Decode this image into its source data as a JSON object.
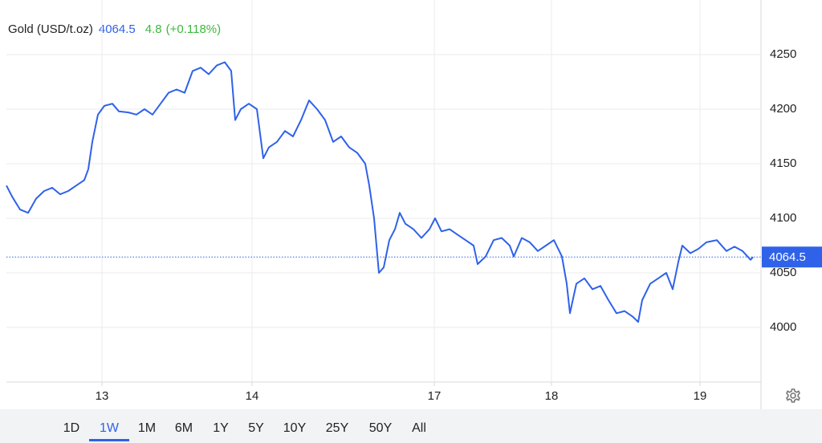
{
  "chart_data": {
    "type": "line",
    "title": "Gold (USD/t.oz)",
    "price": 4064.5,
    "change": 4.8,
    "change_pct": "(+0.118%)",
    "xlim": [
      0,
      940
    ],
    "ylim": [
      3950,
      4300
    ],
    "yticks": [
      4000,
      4050,
      4100,
      4150,
      4200,
      4250
    ],
    "xticks": [
      {
        "value": 119,
        "label": "13"
      },
      {
        "value": 306,
        "label": "14"
      },
      {
        "value": 533,
        "label": "17"
      },
      {
        "value": 679,
        "label": "18"
      },
      {
        "value": 864,
        "label": "19"
      }
    ],
    "grid": true,
    "series": [
      {
        "color": "#2f62e9",
        "x": [
          0,
          7,
          17,
          27,
          37,
          47,
          57,
          67,
          77,
          87,
          97,
          102,
          107,
          114,
          122,
          132,
          140,
          152,
          162,
          172,
          182,
          192,
          202,
          212,
          222,
          232,
          242,
          252,
          262,
          272,
          280,
          285,
          292,
          302,
          312,
          320,
          327,
          337,
          347,
          357,
          367,
          377,
          387,
          397,
          407,
          417,
          427,
          437,
          447,
          452,
          458,
          464,
          470,
          477,
          484,
          490,
          497,
          507,
          517,
          527,
          534,
          542,
          552,
          562,
          572,
          582,
          587,
          597,
          607,
          617,
          627,
          632,
          642,
          652,
          662,
          672,
          682,
          692,
          698,
          702,
          710,
          720,
          730,
          740,
          750,
          760,
          770,
          780,
          787,
          792,
          802,
          812,
          822,
          830,
          837,
          842,
          852,
          862,
          872,
          885,
          897,
          907,
          917,
          927,
          930
        ],
        "values": [
          4130,
          4120,
          4108,
          4105,
          4118,
          4125,
          4128,
          4122,
          4125,
          4130,
          4135,
          4145,
          4170,
          4195,
          4203,
          4205,
          4198,
          4197,
          4195,
          4200,
          4195,
          4205,
          4215,
          4218,
          4215,
          4235,
          4238,
          4232,
          4240,
          4243,
          4235,
          4190,
          4200,
          4205,
          4200,
          4155,
          4165,
          4170,
          4180,
          4175,
          4190,
          4208,
          4200,
          4190,
          4170,
          4175,
          4165,
          4160,
          4150,
          4130,
          4100,
          4050,
          4055,
          4080,
          4090,
          4105,
          4095,
          4090,
          4082,
          4090,
          4100,
          4088,
          4090,
          4085,
          4080,
          4075,
          4058,
          4065,
          4080,
          4082,
          4075,
          4065,
          4082,
          4078,
          4070,
          4075,
          4080,
          4065,
          4040,
          4013,
          4040,
          4045,
          4035,
          4038,
          4025,
          4013,
          4015,
          4010,
          4005,
          4025,
          4040,
          4045,
          4050,
          4035,
          4060,
          4075,
          4068,
          4072,
          4078,
          4080,
          4070,
          4074,
          4070,
          4062,
          4064.5
        ]
      }
    ],
    "range_buttons": [
      "1D",
      "1W",
      "1M",
      "6M",
      "1Y",
      "5Y",
      "10Y",
      "25Y",
      "50Y",
      "All"
    ],
    "active_range": "1W"
  }
}
